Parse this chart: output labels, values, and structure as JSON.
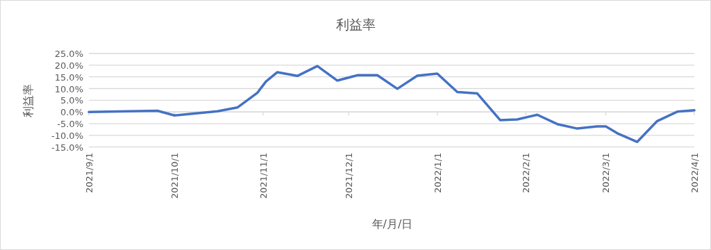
{
  "chart_data": {
    "type": "line",
    "title": "利益率",
    "xlabel": "年/月/日",
    "ylabel": "利益率",
    "x": [
      "2021-09-01",
      "2021-09-25",
      "2021-10-01",
      "2021-10-16",
      "2021-10-23",
      "2021-10-30",
      "2021-11-02",
      "2021-11-06",
      "2021-11-13",
      "2021-11-20",
      "2021-11-27",
      "2021-12-04",
      "2021-12-11",
      "2021-12-18",
      "2021-12-25",
      "2022-01-01",
      "2022-01-08",
      "2022-01-15",
      "2022-01-23",
      "2022-01-29",
      "2022-02-05",
      "2022-02-12",
      "2022-02-19",
      "2022-02-26",
      "2022-03-01",
      "2022-03-05",
      "2022-03-12",
      "2022-03-19",
      "2022-03-26",
      "2022-04-01"
    ],
    "series": [
      {
        "color": "#4472c4",
        "values": [
          0.0,
          0.5,
          -1.5,
          0.3,
          1.9,
          8.2,
          13.0,
          17.0,
          15.4,
          19.6,
          13.4,
          15.7,
          15.7,
          9.9,
          15.5,
          16.4,
          8.5,
          7.9,
          -3.5,
          -3.2,
          -1.2,
          -5.2,
          -7.1,
          -6.2,
          -6.2,
          -9.1,
          -12.8,
          -3.9,
          0.1,
          0.7
        ]
      }
    ],
    "xlim": [
      "2021-09-01",
      "2022-04-01"
    ],
    "xticks": [
      {
        "value": "2021-09-01",
        "label": "2021/9/1"
      },
      {
        "value": "2021-10-01",
        "label": "2021/10/1"
      },
      {
        "value": "2021-11-01",
        "label": "2021/11/1"
      },
      {
        "value": "2021-12-01",
        "label": "2021/12/1"
      },
      {
        "value": "2022-01-01",
        "label": "2022/1/1"
      },
      {
        "value": "2022-02-01",
        "label": "2022/2/1"
      },
      {
        "value": "2022-03-01",
        "label": "2022/3/1"
      },
      {
        "value": "2022-04-01",
        "label": "2022/4/1"
      }
    ],
    "ylim": [
      -15,
      25
    ],
    "yticks": [
      {
        "value": -15,
        "label": "-15.0%"
      },
      {
        "value": -10,
        "label": "-10.0%"
      },
      {
        "value": -5,
        "label": "-5.0%"
      },
      {
        "value": 0,
        "label": "0.0%"
      },
      {
        "value": 5,
        "label": "5.0%"
      },
      {
        "value": 10,
        "label": "10.0%"
      },
      {
        "value": 15,
        "label": "15.0%"
      },
      {
        "value": 20,
        "label": "20.0%"
      },
      {
        "value": 25,
        "label": "25.0%"
      }
    ],
    "grid": "y",
    "line_style": "solid"
  }
}
